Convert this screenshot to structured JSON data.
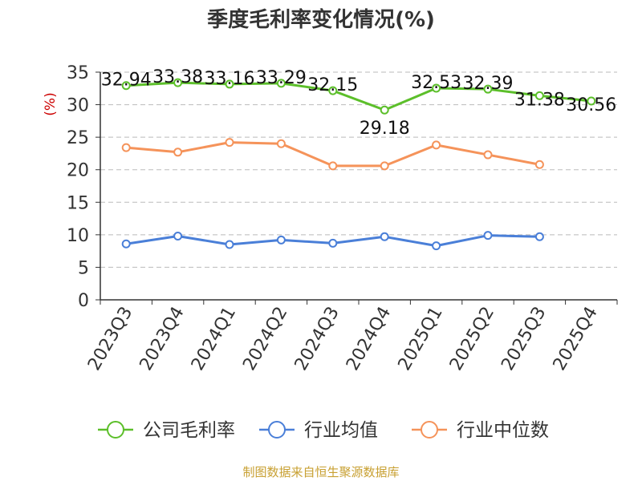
{
  "chart_data": {
    "type": "line",
    "title": "季度毛利率变化情况(%)",
    "ylabel": "(%)",
    "xlabel": "",
    "categories": [
      "2023Q3",
      "2023Q4",
      "2024Q1",
      "2024Q2",
      "2024Q3",
      "2024Q4",
      "2025Q1",
      "2025Q2",
      "2025Q3",
      "2025Q4"
    ],
    "ylim": [
      0,
      35
    ],
    "yticks": [
      0,
      5,
      10,
      15,
      20,
      25,
      30,
      35
    ],
    "grid": true,
    "legend_position": "bottom",
    "series": [
      {
        "name": "公司毛利率",
        "color": "#5cbf2a",
        "values": [
          32.94,
          33.38,
          33.16,
          33.29,
          32.15,
          29.18,
          32.53,
          32.39,
          31.38,
          30.56
        ],
        "labels": [
          "32.94",
          "33.38",
          "33.16",
          "33.29",
          "32.15",
          "29.18",
          "32.53",
          "32.39",
          "31.38",
          "30.56"
        ]
      },
      {
        "name": "行业均值",
        "color": "#4a7fd8",
        "values": [
          8.6,
          9.8,
          8.5,
          9.2,
          8.7,
          9.7,
          8.3,
          9.9,
          9.7,
          null
        ]
      },
      {
        "name": "行业中位数",
        "color": "#f5935a",
        "values": [
          23.4,
          22.7,
          24.2,
          24.0,
          20.6,
          20.6,
          23.8,
          22.3,
          20.8,
          null
        ]
      }
    ]
  },
  "source": "制图数据来自恒生聚源数据库"
}
